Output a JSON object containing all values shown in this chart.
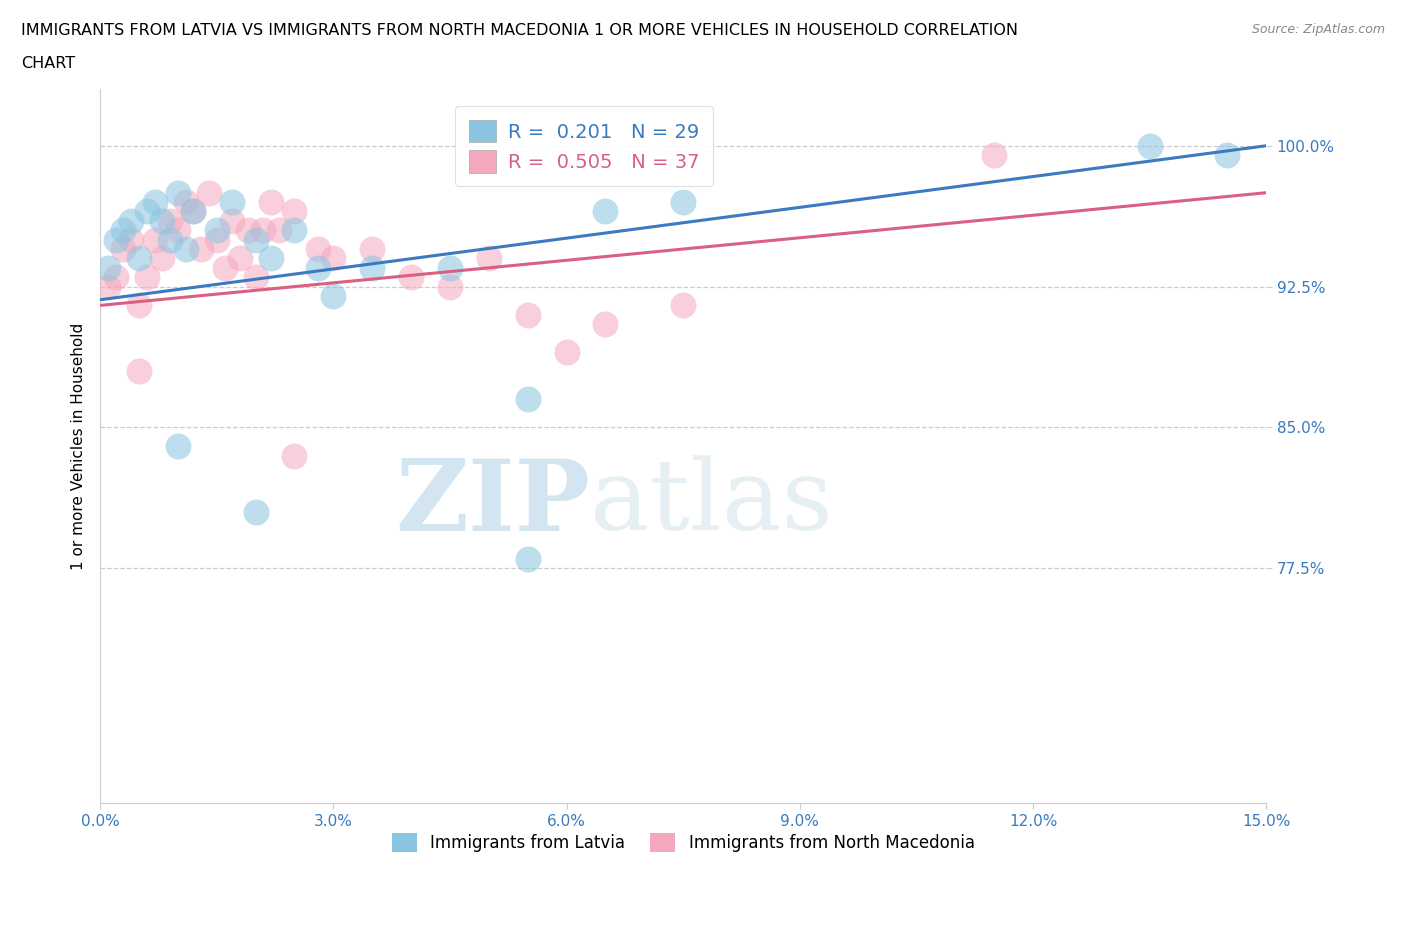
{
  "title_line1": "IMMIGRANTS FROM LATVIA VS IMMIGRANTS FROM NORTH MACEDONIA 1 OR MORE VEHICLES IN HOUSEHOLD CORRELATION",
  "title_line2": "CHART",
  "source": "Source: ZipAtlas.com",
  "ylabel": "1 or more Vehicles in Household",
  "xlim": [
    0.0,
    15.0
  ],
  "ylim": [
    65.0,
    103.0
  ],
  "yticks": [
    77.5,
    85.0,
    92.5,
    100.0
  ],
  "xticks": [
    0.0,
    3.0,
    6.0,
    9.0,
    12.0,
    15.0
  ],
  "blue_color": "#89c4e1",
  "pink_color": "#f4a8be",
  "blue_line_color": "#3a7abf",
  "pink_line_color": "#d96080",
  "R_blue": 0.201,
  "N_blue": 29,
  "R_pink": 0.505,
  "N_pink": 37,
  "watermark_zip": "ZIP",
  "watermark_atlas": "atlas",
  "blue_line_x0": 0.0,
  "blue_line_y0": 91.8,
  "blue_line_x1": 15.0,
  "blue_line_y1": 100.0,
  "pink_line_x0": 0.0,
  "pink_line_y0": 91.5,
  "pink_line_x1": 15.0,
  "pink_line_y1": 97.5,
  "blue_scatter_x": [
    0.1,
    0.2,
    0.3,
    0.4,
    0.5,
    0.6,
    0.7,
    0.8,
    0.9,
    1.0,
    1.1,
    1.2,
    1.5,
    1.7,
    2.0,
    2.2,
    2.5,
    2.8,
    3.0,
    3.5,
    4.5,
    5.5,
    6.5,
    7.5,
    13.5,
    14.5,
    1.0,
    2.0,
    5.5
  ],
  "blue_scatter_y": [
    93.5,
    95.0,
    95.5,
    96.0,
    94.0,
    96.5,
    97.0,
    96.0,
    95.0,
    97.5,
    94.5,
    96.5,
    95.5,
    97.0,
    95.0,
    94.0,
    95.5,
    93.5,
    92.0,
    93.5,
    93.5,
    86.5,
    96.5,
    97.0,
    100.0,
    99.5,
    84.0,
    80.5,
    78.0
  ],
  "pink_scatter_x": [
    0.1,
    0.2,
    0.3,
    0.4,
    0.5,
    0.6,
    0.7,
    0.8,
    0.9,
    1.0,
    1.1,
    1.2,
    1.3,
    1.4,
    1.5,
    1.6,
    1.7,
    1.8,
    1.9,
    2.0,
    2.1,
    2.2,
    2.3,
    2.5,
    2.8,
    3.0,
    3.5,
    4.0,
    4.5,
    5.0,
    5.5,
    6.0,
    6.5,
    7.5,
    11.5,
    0.5,
    2.5
  ],
  "pink_scatter_y": [
    92.5,
    93.0,
    94.5,
    95.0,
    91.5,
    93.0,
    95.0,
    94.0,
    96.0,
    95.5,
    97.0,
    96.5,
    94.5,
    97.5,
    95.0,
    93.5,
    96.0,
    94.0,
    95.5,
    93.0,
    95.5,
    97.0,
    95.5,
    96.5,
    94.5,
    94.0,
    94.5,
    93.0,
    92.5,
    94.0,
    91.0,
    89.0,
    90.5,
    91.5,
    99.5,
    88.0,
    83.5
  ]
}
